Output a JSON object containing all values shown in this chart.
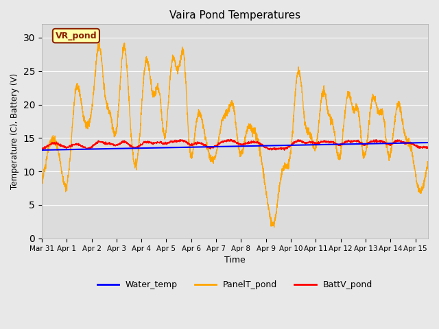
{
  "title": "Vaira Pond Temperatures",
  "xlabel": "Time",
  "ylabel": "Temperature (C), Battery (V)",
  "ylim": [
    0,
    32
  ],
  "yticks": [
    0,
    5,
    10,
    15,
    20,
    25,
    30
  ],
  "fig_bg_color": "#e8e8e8",
  "plot_bg_color": "#dcdcdc",
  "annotation_text": "VR_pond",
  "annotation_bg": "#ffffaa",
  "annotation_border": "#8b2000",
  "legend_labels": [
    "Water_temp",
    "PanelT_pond",
    "BattV_pond"
  ],
  "legend_colors": [
    "blue",
    "#FFA500",
    "red"
  ],
  "water_temp_color": "blue",
  "panel_color": "#FFA500",
  "batt_color": "red",
  "xstart_day": 0,
  "xend_day": 15.5,
  "xtick_positions": [
    0,
    1,
    2,
    3,
    4,
    5,
    6,
    7,
    8,
    9,
    10,
    11,
    12,
    13,
    14,
    15
  ],
  "xtick_labels": [
    "Mar 31",
    "Apr 1",
    "Apr 2",
    "Apr 3",
    "Apr 4",
    "Apr 5",
    "Apr 6",
    "Apr 7",
    "Apr 8",
    "Apr 9",
    "Apr 10",
    "Apr 11",
    "Apr 12",
    "Apr 13",
    "Apr 14",
    "Apr 15"
  ],
  "grid_color": "white",
  "grid_alpha": 1.0,
  "grid_lw": 0.8
}
